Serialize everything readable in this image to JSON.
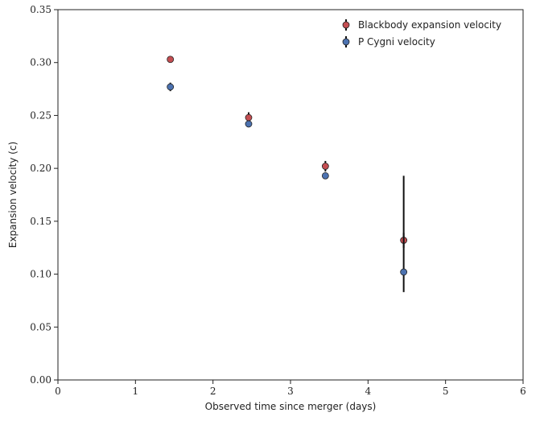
{
  "chart_data": {
    "type": "errorbar-scatter",
    "x_label": "Observed time since merger (days)",
    "y_label": "Expansion velocity (c)",
    "xlim": [
      0,
      6
    ],
    "xticks": [
      0,
      1,
      2,
      3,
      4,
      5,
      6
    ],
    "ylim": [
      0,
      0.35
    ],
    "yticks": [
      {
        "value": 0,
        "label": "0.00"
      },
      0.05,
      {
        "value": 0.1,
        "label": "0.10"
      },
      0.15,
      {
        "value": 0.2,
        "label": "0.20"
      },
      0.25,
      {
        "value": 0.3,
        "label": "0.30"
      },
      0.35
    ],
    "legend": "upper right",
    "series": [
      {
        "name": "Blackbody expansion velocity",
        "color": "#c44e52",
        "x": [
          1.45,
          2.46,
          3.45,
          4.46
        ],
        "values": [
          0.303,
          0.248,
          0.202,
          0.132
        ],
        "yerr": [
          [
            0.002,
            0.002
          ],
          [
            0.005,
            0.005
          ],
          [
            0.005,
            0.005
          ],
          [
            0.007,
            0.007
          ]
        ]
      },
      {
        "name": "P Cygni velocity",
        "color": "#4c72b0",
        "x": [
          1.45,
          2.46,
          3.45,
          4.46
        ],
        "values": [
          0.277,
          0.242,
          0.193,
          0.102
        ],
        "yerr": [
          [
            0.004,
            0.004
          ],
          [
            0.002,
            0.002
          ],
          [
            0.002,
            0.002
          ],
          [
            0.019,
            0.091
          ]
        ]
      }
    ]
  }
}
